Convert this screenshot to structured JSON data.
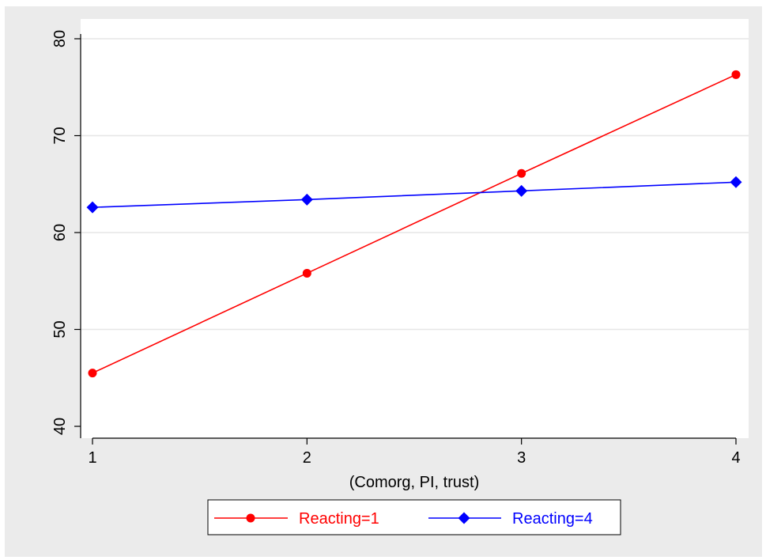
{
  "chart_data": {
    "type": "line",
    "title": "",
    "xlabel": "(Comorg, PI, trust)",
    "ylabel": "",
    "x": [
      1,
      2,
      3,
      4
    ],
    "x_ticks": [
      "1",
      "2",
      "3",
      "4"
    ],
    "y_ticks": [
      "40",
      "50",
      "60",
      "70",
      "80"
    ],
    "xlim": [
      1,
      4
    ],
    "ylim": [
      40,
      80
    ],
    "grid": "horizontal",
    "legend_position": "bottom",
    "series": [
      {
        "name": "Reacting=1",
        "values": [
          45.5,
          55.8,
          66.1,
          76.3
        ],
        "color": "#ff0000",
        "marker": "circle"
      },
      {
        "name": "Reacting=4",
        "values": [
          62.6,
          63.4,
          64.3,
          65.2
        ],
        "color": "#0000ff",
        "marker": "diamond"
      }
    ]
  }
}
